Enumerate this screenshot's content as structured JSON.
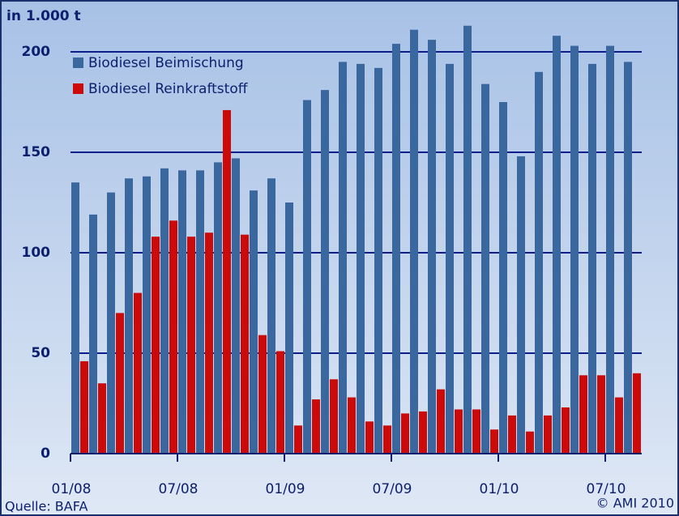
{
  "chart_data": {
    "type": "bar",
    "y_label": "in 1.000 t",
    "source": "Quelle: BAFA",
    "copyright": "© AMI 2010",
    "categories": [
      "01/08",
      null,
      null,
      null,
      null,
      null,
      "07/08",
      null,
      null,
      null,
      null,
      null,
      "01/09",
      null,
      null,
      null,
      null,
      null,
      "07/09",
      null,
      null,
      null,
      null,
      null,
      "01/10",
      null,
      null,
      null,
      null,
      null,
      "07/10",
      null
    ],
    "series": [
      {
        "name": "Biodiesel Beimischung",
        "color": "#3b679f",
        "values": [
          135,
          119,
          130,
          137,
          138,
          142,
          141,
          141,
          145,
          147,
          131,
          137,
          125,
          176,
          181,
          195,
          194,
          192,
          204,
          211,
          206,
          194,
          213,
          184,
          175,
          148,
          190,
          208,
          203,
          194,
          203,
          195
        ]
      },
      {
        "name": "Biodiesel Reinkraftstoff",
        "color": "#cc0a0a",
        "values": [
          46,
          35,
          70,
          80,
          108,
          116,
          108,
          110,
          171,
          109,
          59,
          51,
          14,
          27,
          37,
          28,
          16,
          14,
          20,
          21,
          32,
          22,
          22,
          12,
          19,
          11,
          19,
          23,
          39,
          39,
          28,
          40
        ]
      }
    ],
    "ylim": [
      0,
      216
    ],
    "yticks": [
      0,
      50,
      100,
      150,
      200
    ],
    "grid": true,
    "legend": "top-left"
  }
}
